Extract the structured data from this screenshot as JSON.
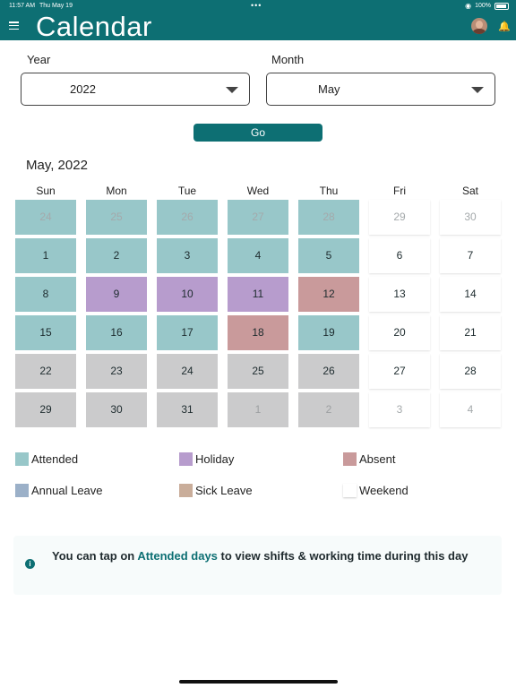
{
  "status_bar": {
    "time": "11:57 AM",
    "date": "Thu May 19",
    "dots": "•••",
    "battery": "100%"
  },
  "header": {
    "title": "Calendar"
  },
  "filters": {
    "year_label": "Year",
    "year_value": "2022",
    "month_label": "Month",
    "month_value": "May",
    "go_label": "Go"
  },
  "calendar": {
    "month_title": "May, 2022",
    "weekdays": [
      "Sun",
      "Mon",
      "Tue",
      "Wed",
      "Thu",
      "Fri",
      "Sat"
    ],
    "weeks": [
      [
        {
          "d": "24",
          "s": "attended",
          "m": true
        },
        {
          "d": "25",
          "s": "attended",
          "m": true
        },
        {
          "d": "26",
          "s": "attended",
          "m": true
        },
        {
          "d": "27",
          "s": "attended",
          "m": true
        },
        {
          "d": "28",
          "s": "attended",
          "m": true
        },
        {
          "d": "29",
          "s": "weekend",
          "m": true
        },
        {
          "d": "30",
          "s": "weekend",
          "m": true
        }
      ],
      [
        {
          "d": "1",
          "s": "attended"
        },
        {
          "d": "2",
          "s": "attended"
        },
        {
          "d": "3",
          "s": "attended"
        },
        {
          "d": "4",
          "s": "attended"
        },
        {
          "d": "5",
          "s": "attended"
        },
        {
          "d": "6",
          "s": "weekend"
        },
        {
          "d": "7",
          "s": "weekend"
        }
      ],
      [
        {
          "d": "8",
          "s": "attended"
        },
        {
          "d": "9",
          "s": "holiday"
        },
        {
          "d": "10",
          "s": "holiday"
        },
        {
          "d": "11",
          "s": "holiday"
        },
        {
          "d": "12",
          "s": "absent"
        },
        {
          "d": "13",
          "s": "weekend"
        },
        {
          "d": "14",
          "s": "weekend"
        }
      ],
      [
        {
          "d": "15",
          "s": "attended"
        },
        {
          "d": "16",
          "s": "attended"
        },
        {
          "d": "17",
          "s": "attended"
        },
        {
          "d": "18",
          "s": "absent"
        },
        {
          "d": "19",
          "s": "attended"
        },
        {
          "d": "20",
          "s": "weekend"
        },
        {
          "d": "21",
          "s": "weekend"
        }
      ],
      [
        {
          "d": "22",
          "s": "gray"
        },
        {
          "d": "23",
          "s": "gray"
        },
        {
          "d": "24",
          "s": "gray"
        },
        {
          "d": "25",
          "s": "gray"
        },
        {
          "d": "26",
          "s": "gray"
        },
        {
          "d": "27",
          "s": "weekend"
        },
        {
          "d": "28",
          "s": "weekend"
        }
      ],
      [
        {
          "d": "29",
          "s": "gray"
        },
        {
          "d": "30",
          "s": "gray"
        },
        {
          "d": "31",
          "s": "gray"
        },
        {
          "d": "1",
          "s": "gray",
          "m": true
        },
        {
          "d": "2",
          "s": "gray",
          "m": true
        },
        {
          "d": "3",
          "s": "weekend",
          "m": true
        },
        {
          "d": "4",
          "s": "weekend",
          "m": true
        }
      ]
    ]
  },
  "legend": {
    "attended": "Attended",
    "holiday": "Holiday",
    "absent": "Absent",
    "annual_leave": "Annual Leave",
    "sick_leave": "Sick Leave",
    "weekend": "Weekend"
  },
  "info": {
    "prefix": "You can tap on ",
    "highlight": "Attended days",
    "suffix": " to view shifts & working time during this day"
  },
  "colors": {
    "brand": "#0d6f73",
    "attended": "#98c7c9",
    "holiday": "#b79ccd",
    "absent": "#c99a9b",
    "annual_leave": "#9bb0c8",
    "sick_leave": "#c9ad9a",
    "upcoming": "#cbcbcc",
    "weekend": "#ffffff"
  }
}
